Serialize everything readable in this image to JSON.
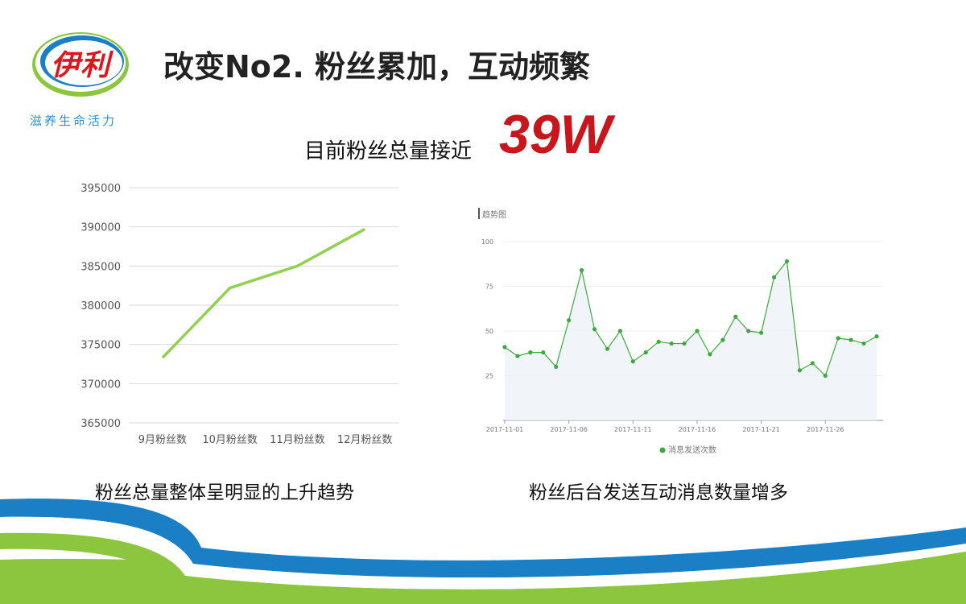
{
  "header": {
    "logo_text": "伊利",
    "slogan": "滋养生命活力",
    "title": "改变No2. 粉丝累加，互动频繁",
    "subtitle": "目前粉丝总量接近",
    "highlight": "39W"
  },
  "captions": {
    "left": "粉丝总量整体呈明显的上升趋势",
    "right": "粉丝后台发送互动消息数量增多"
  },
  "colors": {
    "line1": "#92d050",
    "line2": "#3daa3d",
    "brand_red": "#c8161d",
    "brand_blue": "#1a7fc4",
    "brand_green": "#8cc63f"
  },
  "chart_data": [
    {
      "type": "line",
      "title": "",
      "categories": [
        "9月粉丝数",
        "10月粉丝数",
        "11月粉丝数",
        "12月粉丝数"
      ],
      "series": [
        {
          "values": [
            373300,
            382200,
            385000,
            389700
          ]
        }
      ],
      "ylim": [
        365000,
        395000
      ],
      "yticks": [
        365000,
        370000,
        375000,
        380000,
        385000,
        390000,
        395000
      ],
      "grid": true
    },
    {
      "type": "area",
      "title": "趋势图",
      "x": [
        "2017-11-01",
        "2017-11-02",
        "2017-11-03",
        "2017-11-04",
        "2017-11-05",
        "2017-11-06",
        "2017-11-07",
        "2017-11-08",
        "2017-11-09",
        "2017-11-10",
        "2017-11-11",
        "2017-11-12",
        "2017-11-13",
        "2017-11-14",
        "2017-11-15",
        "2017-11-16",
        "2017-11-17",
        "2017-11-18",
        "2017-11-19",
        "2017-11-20",
        "2017-11-21",
        "2017-11-22",
        "2017-11-23",
        "2017-11-24",
        "2017-11-25",
        "2017-11-26",
        "2017-11-27",
        "2017-11-28",
        "2017-11-29",
        "2017-11-30"
      ],
      "xticks": [
        "2017-11-01",
        "2017-11-06",
        "2017-11-11",
        "2017-11-16",
        "2017-11-21",
        "2017-11-26"
      ],
      "series": [
        {
          "name": "消息发送次数",
          "values": [
            41,
            36,
            38,
            38,
            30,
            56,
            84,
            51,
            40,
            50,
            33,
            38,
            44,
            43,
            43,
            50,
            37,
            45,
            58,
            50,
            49,
            80,
            89,
            28,
            32,
            25,
            46,
            45,
            43,
            47
          ]
        }
      ],
      "ylim": [
        0,
        100
      ],
      "yticks": [
        25,
        50,
        75,
        100
      ],
      "legend": "bottom",
      "grid": true
    }
  ]
}
